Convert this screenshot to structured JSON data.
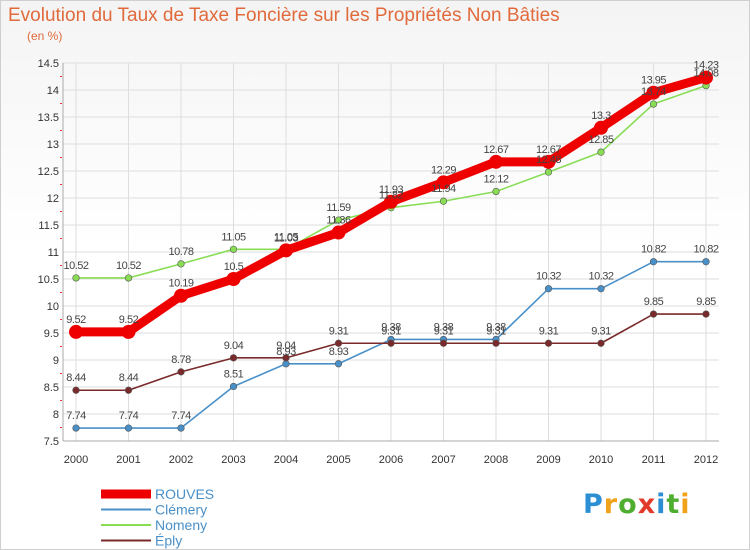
{
  "title": "Evolution du Taux de Taxe Foncière sur les Propriétés Non Bâties",
  "unit_label": "(en %)",
  "logo_text": "Proxiti",
  "chart_data": {
    "type": "line",
    "x": [
      "2000",
      "2001",
      "2002",
      "2003",
      "2004",
      "2005",
      "2006",
      "2007",
      "2008",
      "2009",
      "2010",
      "2011",
      "2012"
    ],
    "ylim": [
      7.5,
      14.5
    ],
    "yticks": [
      "7.5",
      "8",
      "8.5",
      "9",
      "9.5",
      "10",
      "10.5",
      "11",
      "11.5",
      "12",
      "12.5",
      "13",
      "13.5",
      "14",
      "14.5"
    ],
    "legend_position": "bottom-left",
    "series": [
      {
        "name": "ROUVES",
        "color": "#ee0000",
        "values": [
          9.52,
          9.52,
          10.19,
          10.5,
          11.03,
          11.36,
          11.93,
          12.29,
          12.67,
          12.67,
          13.3,
          13.95,
          14.23
        ],
        "labels": [
          "9.52",
          "9.52",
          "10.19",
          "10.5",
          "11.03",
          "11.36",
          "11.93",
          "12.29",
          "12.67",
          "12.67",
          "13.3",
          "13.95",
          "14.23"
        ]
      },
      {
        "name": "Clémery",
        "color": "#4a90c8",
        "values": [
          7.74,
          7.74,
          7.74,
          8.51,
          8.93,
          8.93,
          9.38,
          9.38,
          9.38,
          10.32,
          10.32,
          10.82,
          10.82
        ],
        "labels": [
          "7.74",
          "7.74",
          "7.74",
          "8.51",
          "8.93",
          "8.93",
          "9.38",
          "9.38",
          "9.38",
          "10.32",
          "10.32",
          "10.82",
          "10.82"
        ]
      },
      {
        "name": "Nomeny",
        "color": "#88dd55",
        "values": [
          10.52,
          10.52,
          10.78,
          11.05,
          11.05,
          11.59,
          11.82,
          11.94,
          12.12,
          12.48,
          12.85,
          13.74,
          14.08
        ],
        "labels": [
          "10.52",
          "10.52",
          "10.78",
          "11.05",
          "11.05",
          "11.59",
          "11.82",
          "11.94",
          "12.12",
          "12.48",
          "12.85",
          "13.74",
          "14.08"
        ]
      },
      {
        "name": "Éply",
        "color": "#7a2a2a",
        "values": [
          8.44,
          8.44,
          8.78,
          9.04,
          9.04,
          9.31,
          9.31,
          9.31,
          9.31,
          9.31,
          9.31,
          9.85,
          9.85
        ],
        "labels": [
          "8.44",
          "8.44",
          "8.78",
          "9.04",
          "9.04",
          "9.31",
          "9.31",
          "9.31",
          "9.31",
          "9.31",
          "9.31",
          "9.85",
          "9.85"
        ]
      }
    ]
  }
}
